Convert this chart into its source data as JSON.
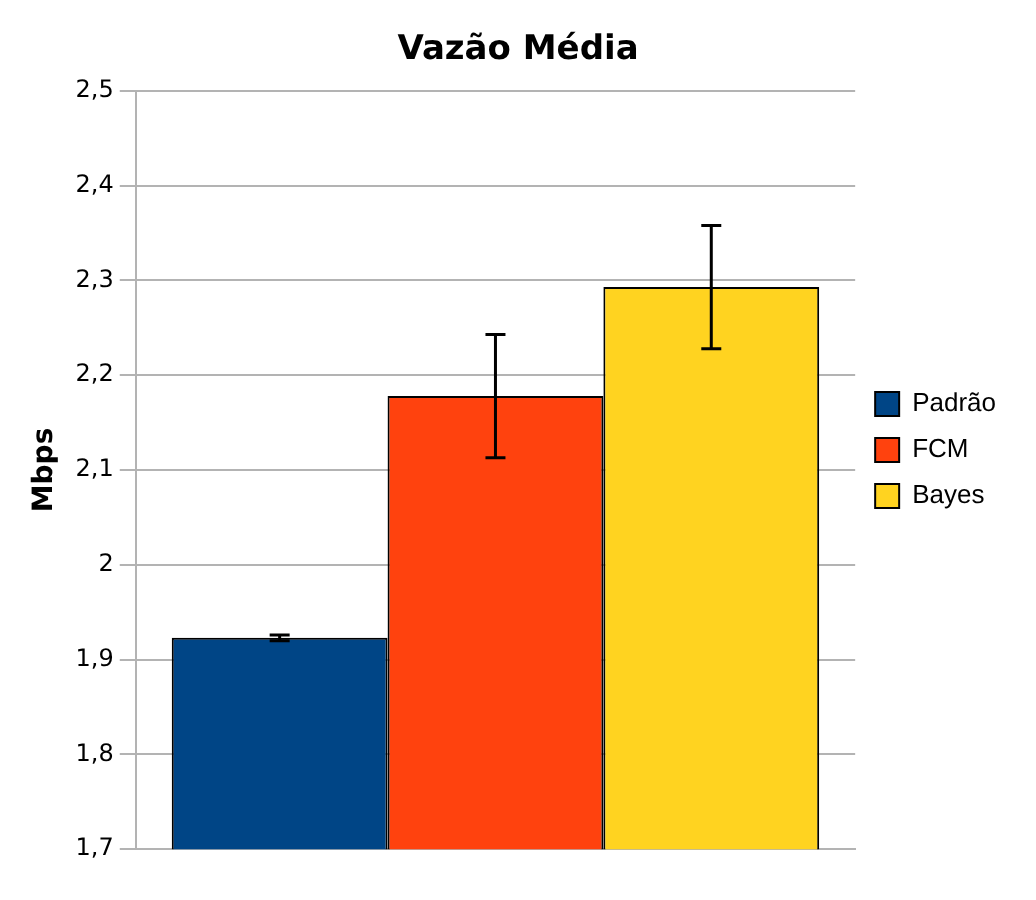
{
  "chart_data": {
    "type": "bar",
    "title": "Vazão Média",
    "ylabel": "Mbps",
    "categories": [
      null
    ],
    "series": [
      {
        "name": "Padrão",
        "color": "#004586",
        "values": [
          1.923
        ],
        "errors": [
          0.003
        ]
      },
      {
        "name": "FCM",
        "color": "#ff420e",
        "values": [
          2.178
        ],
        "errors": [
          0.065
        ]
      },
      {
        "name": "Bayes",
        "color": "#ffd320",
        "values": [
          2.293
        ],
        "errors": [
          0.065
        ]
      }
    ],
    "ylim": [
      1.7,
      2.5
    ],
    "yticks": [
      {
        "value": 1.7,
        "label": "1,7"
      },
      {
        "value": 1.8,
        "label": "1,8"
      },
      {
        "value": 1.9,
        "label": "1,9"
      },
      2,
      {
        "value": 2.1,
        "label": "2,1"
      },
      {
        "value": 2.2,
        "label": "2,2"
      },
      {
        "value": 2.3,
        "label": "2,3"
      },
      {
        "value": 2.4,
        "label": "2,4"
      },
      {
        "value": 2.5,
        "label": "2,5"
      }
    ],
    "grid": "y",
    "legend": "right"
  }
}
